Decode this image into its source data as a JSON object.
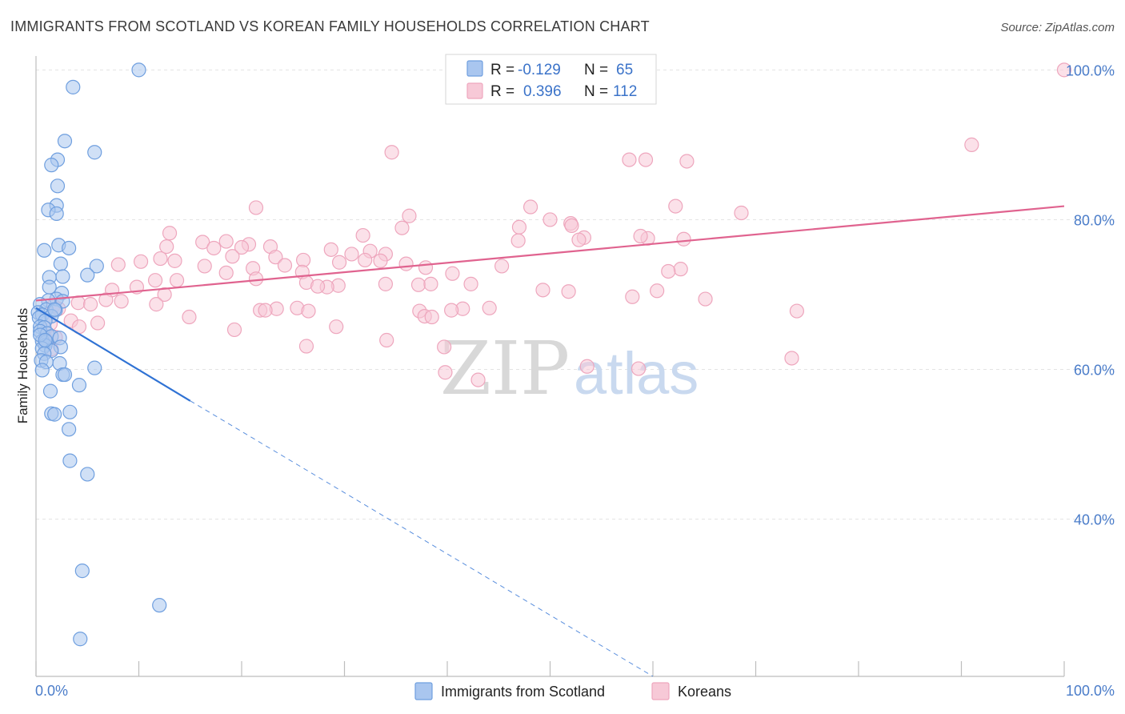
{
  "chart_data": {
    "type": "scatter",
    "title": "IMMIGRANTS FROM SCOTLAND VS KOREAN FAMILY HOUSEHOLDS CORRELATION CHART",
    "source": "Source: ZipAtlas.com",
    "ylabel": "Family Households",
    "xlim": [
      0,
      100
    ],
    "ylim": [
      19,
      101
    ],
    "x_tick_labels": [
      {
        "value": 0,
        "label": "0.0%"
      },
      {
        "value": 100,
        "label": "100.0%"
      }
    ],
    "y_tick_labels": [
      {
        "value": 100,
        "label": "100.0%"
      },
      {
        "value": 80,
        "label": "80.0%"
      },
      {
        "value": 60,
        "label": "60.0%"
      },
      {
        "value": 40,
        "label": "40.0%"
      }
    ],
    "watermark": {
      "zip": "ZIP",
      "atlas": "atlas"
    },
    "legend": {
      "rows": [
        {
          "r_label": "R =",
          "r_value": "-0.129",
          "n_label": "N =",
          "n_value": "65"
        },
        {
          "r_label": "R =",
          "r_value": "0.396",
          "n_label": "N =",
          "n_value": "112"
        }
      ]
    },
    "series": [
      {
        "name": "Immigrants from Scotland",
        "color": "#6f9fdf",
        "fill": "#a9c6ef",
        "line_color": "#2f72d4",
        "trend": {
          "x0": 0,
          "y0": 68.2,
          "x1": 15,
          "y1": 55.8,
          "dash_x1": 60,
          "dash_y1": 19
        },
        "points": [
          [
            10.0,
            100.0
          ],
          [
            3.6,
            97.7
          ],
          [
            2.8,
            90.5
          ],
          [
            5.7,
            89.0
          ],
          [
            2.1,
            88.0
          ],
          [
            1.5,
            87.3
          ],
          [
            2.1,
            84.5
          ],
          [
            2.0,
            81.9
          ],
          [
            1.2,
            81.3
          ],
          [
            2.0,
            80.8
          ],
          [
            2.2,
            76.6
          ],
          [
            3.2,
            76.2
          ],
          [
            0.8,
            75.9
          ],
          [
            2.4,
            74.1
          ],
          [
            5.9,
            73.8
          ],
          [
            5.0,
            72.6
          ],
          [
            2.6,
            72.4
          ],
          [
            1.3,
            72.3
          ],
          [
            1.3,
            71.0
          ],
          [
            2.5,
            70.2
          ],
          [
            2.0,
            69.4
          ],
          [
            1.2,
            69.2
          ],
          [
            2.6,
            69.1
          ],
          [
            0.4,
            68.7
          ],
          [
            1.0,
            68.0
          ],
          [
            1.9,
            67.9
          ],
          [
            0.2,
            67.6
          ],
          [
            0.6,
            67.3
          ],
          [
            1.5,
            67.1
          ],
          [
            0.3,
            66.9
          ],
          [
            0.9,
            66.5
          ],
          [
            0.4,
            65.7
          ],
          [
            0.8,
            65.6
          ],
          [
            0.4,
            65.1
          ],
          [
            1.1,
            64.8
          ],
          [
            1.5,
            64.4
          ],
          [
            2.3,
            64.2
          ],
          [
            0.6,
            63.8
          ],
          [
            1.0,
            63.7
          ],
          [
            0.9,
            63.2
          ],
          [
            2.4,
            63.0
          ],
          [
            0.6,
            62.8
          ],
          [
            1.5,
            62.5
          ],
          [
            0.8,
            62.1
          ],
          [
            0.5,
            61.2
          ],
          [
            1.0,
            61.0
          ],
          [
            2.3,
            60.8
          ],
          [
            5.7,
            60.2
          ],
          [
            0.6,
            59.9
          ],
          [
            2.6,
            59.3
          ],
          [
            2.8,
            59.3
          ],
          [
            4.2,
            57.9
          ],
          [
            1.4,
            57.1
          ],
          [
            1.5,
            54.1
          ],
          [
            1.8,
            54.0
          ],
          [
            3.3,
            54.3
          ],
          [
            3.2,
            52.0
          ],
          [
            3.3,
            47.8
          ],
          [
            5.0,
            46.0
          ],
          [
            4.5,
            33.1
          ],
          [
            12.0,
            28.5
          ],
          [
            4.3,
            24.0
          ],
          [
            0.4,
            64.6
          ],
          [
            0.9,
            63.9
          ],
          [
            1.8,
            68.0
          ]
        ]
      },
      {
        "name": "Koreans",
        "color": "#eea6bd",
        "fill": "#f7c9d7",
        "line_color": "#e0638f",
        "trend": {
          "x0": 0,
          "y0": 69.2,
          "x1": 100,
          "y1": 81.8
        },
        "points": [
          [
            100.0,
            100.0
          ],
          [
            91.0,
            90.0
          ],
          [
            34.6,
            89.0
          ],
          [
            59.3,
            88.0
          ],
          [
            57.7,
            88.0
          ],
          [
            63.3,
            87.8
          ],
          [
            62.2,
            81.8
          ],
          [
            48.1,
            81.7
          ],
          [
            21.4,
            81.6
          ],
          [
            68.6,
            80.9
          ],
          [
            36.3,
            80.5
          ],
          [
            50.0,
            80.0
          ],
          [
            52.0,
            79.5
          ],
          [
            52.1,
            79.2
          ],
          [
            47.0,
            79.0
          ],
          [
            35.6,
            78.9
          ],
          [
            13.0,
            78.2
          ],
          [
            31.8,
            77.9
          ],
          [
            53.3,
            77.6
          ],
          [
            59.5,
            77.5
          ],
          [
            52.8,
            77.3
          ],
          [
            46.9,
            77.2
          ],
          [
            63.0,
            77.4
          ],
          [
            58.8,
            77.8
          ],
          [
            16.2,
            77.0
          ],
          [
            18.5,
            77.1
          ],
          [
            12.7,
            76.4
          ],
          [
            20.7,
            76.7
          ],
          [
            20.0,
            76.3
          ],
          [
            17.3,
            76.2
          ],
          [
            22.8,
            76.4
          ],
          [
            28.7,
            76.0
          ],
          [
            32.5,
            75.8
          ],
          [
            30.7,
            75.4
          ],
          [
            23.3,
            75.0
          ],
          [
            19.1,
            75.1
          ],
          [
            12.1,
            74.8
          ],
          [
            34.0,
            75.4
          ],
          [
            10.2,
            74.4
          ],
          [
            13.5,
            74.5
          ],
          [
            26.0,
            74.6
          ],
          [
            29.5,
            74.3
          ],
          [
            32.0,
            74.6
          ],
          [
            33.5,
            74.5
          ],
          [
            36.0,
            74.1
          ],
          [
            37.9,
            73.6
          ],
          [
            21.1,
            73.5
          ],
          [
            16.4,
            73.8
          ],
          [
            18.5,
            72.9
          ],
          [
            8.0,
            74.0
          ],
          [
            24.2,
            73.9
          ],
          [
            45.3,
            73.8
          ],
          [
            62.7,
            73.4
          ],
          [
            61.5,
            73.1
          ],
          [
            25.9,
            73.0
          ],
          [
            40.5,
            72.8
          ],
          [
            21.4,
            72.1
          ],
          [
            26.3,
            71.6
          ],
          [
            34.0,
            71.4
          ],
          [
            29.4,
            71.2
          ],
          [
            28.3,
            71.0
          ],
          [
            27.4,
            71.1
          ],
          [
            37.2,
            71.3
          ],
          [
            38.4,
            71.4
          ],
          [
            11.6,
            71.9
          ],
          [
            13.7,
            71.9
          ],
          [
            9.8,
            71.0
          ],
          [
            42.3,
            71.4
          ],
          [
            49.3,
            70.6
          ],
          [
            12.5,
            70.0
          ],
          [
            7.4,
            70.6
          ],
          [
            51.8,
            70.4
          ],
          [
            60.4,
            70.5
          ],
          [
            58.0,
            69.7
          ],
          [
            65.1,
            69.4
          ],
          [
            6.8,
            69.3
          ],
          [
            8.3,
            69.1
          ],
          [
            4.1,
            68.9
          ],
          [
            5.3,
            68.7
          ],
          [
            1.7,
            68.5
          ],
          [
            11.7,
            68.7
          ],
          [
            2.2,
            68.1
          ],
          [
            23.4,
            68.1
          ],
          [
            21.8,
            67.9
          ],
          [
            22.3,
            67.9
          ],
          [
            25.4,
            68.2
          ],
          [
            26.5,
            67.8
          ],
          [
            41.5,
            68.1
          ],
          [
            44.1,
            68.2
          ],
          [
            40.4,
            67.9
          ],
          [
            37.3,
            67.8
          ],
          [
            37.8,
            67.1
          ],
          [
            38.5,
            67.0
          ],
          [
            74.0,
            67.8
          ],
          [
            14.9,
            67.0
          ],
          [
            3.4,
            66.5
          ],
          [
            6.0,
            66.2
          ],
          [
            4.2,
            65.7
          ],
          [
            1.4,
            66.1
          ],
          [
            29.2,
            65.7
          ],
          [
            19.3,
            65.3
          ],
          [
            34.1,
            63.9
          ],
          [
            0.9,
            64.2
          ],
          [
            1.9,
            64.3
          ],
          [
            26.3,
            63.1
          ],
          [
            39.7,
            63.0
          ],
          [
            1.5,
            62.7
          ],
          [
            73.5,
            61.5
          ],
          [
            53.6,
            60.4
          ],
          [
            58.6,
            60.1
          ],
          [
            39.8,
            59.6
          ],
          [
            43.0,
            58.6
          ]
        ]
      }
    ]
  }
}
